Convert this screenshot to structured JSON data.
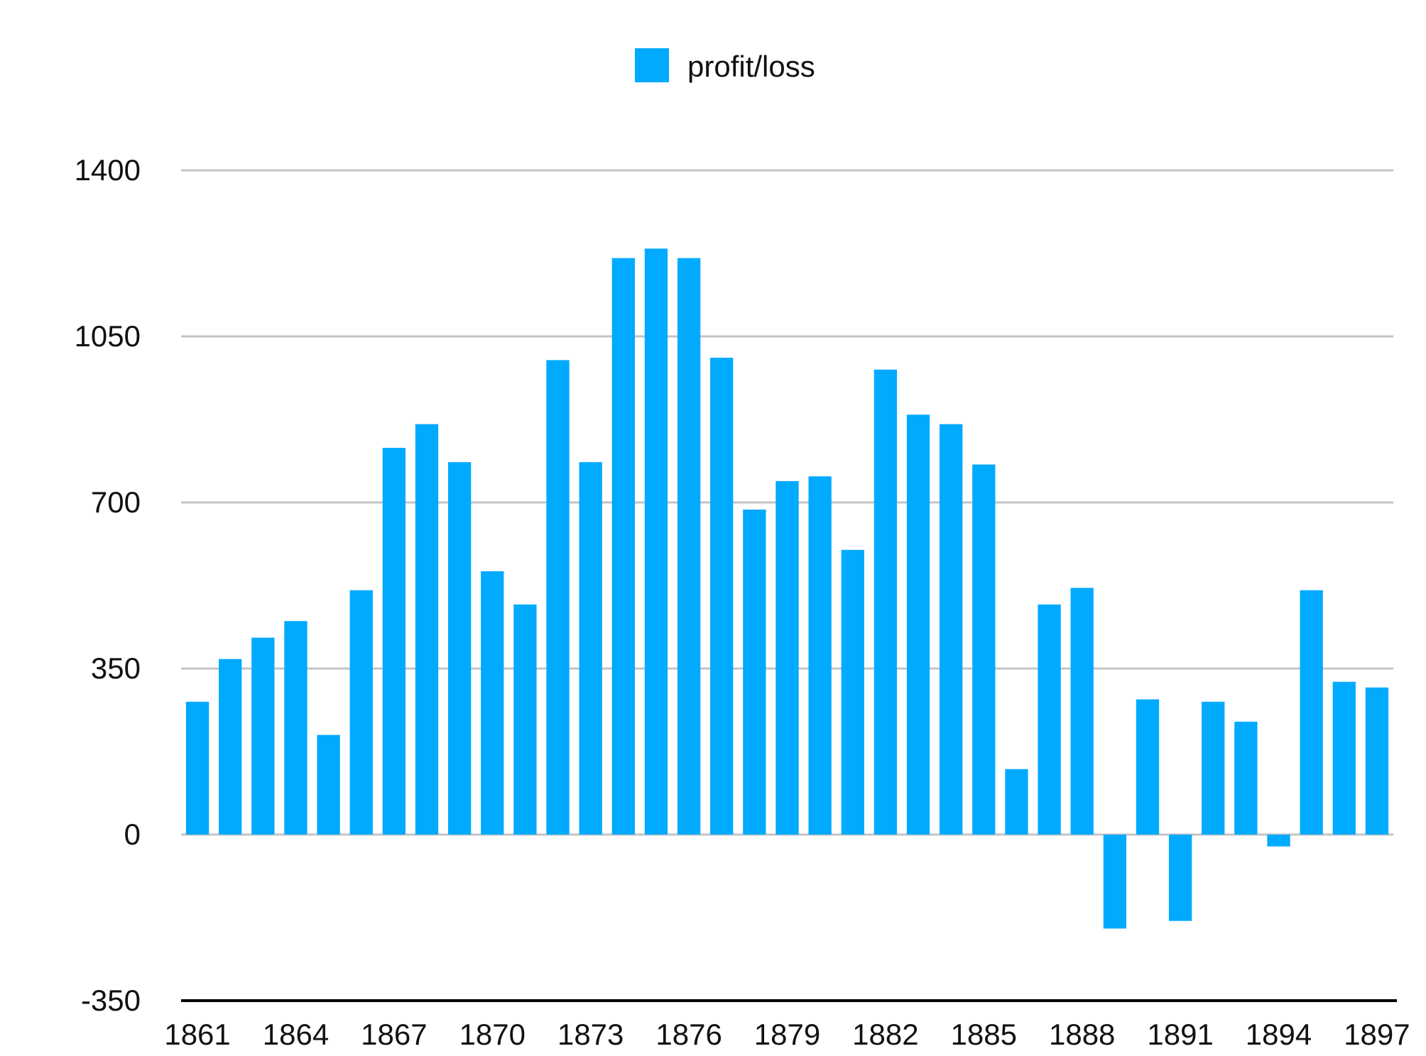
{
  "chart_data": {
    "type": "bar",
    "legend": {
      "position": "top-center",
      "entries": [
        {
          "name": "profit/loss",
          "color": "#00AAFF"
        }
      ]
    },
    "categories": [
      "1861",
      "1862",
      "1863",
      "1864",
      "1865",
      "1866",
      "1867",
      "1868",
      "1869",
      "1870",
      "1871",
      "1872",
      "1873",
      "1874",
      "1875",
      "1876",
      "1877",
      "1878",
      "1879",
      "1880",
      "1881",
      "1882",
      "1883",
      "1884",
      "1885",
      "1886",
      "1887",
      "1888",
      "1889",
      "1890",
      "1891",
      "1892",
      "1893",
      "1894",
      "1895",
      "1896",
      "1897"
    ],
    "x_tick_labels": [
      "1861",
      "1864",
      "1867",
      "1870",
      "1873",
      "1876",
      "1879",
      "1882",
      "1885",
      "1888",
      "1891",
      "1894",
      "1897"
    ],
    "series": [
      {
        "name": "profit/loss",
        "color": "#00AAFF",
        "values": [
          280,
          370,
          415,
          450,
          210,
          515,
          815,
          865,
          785,
          555,
          485,
          1000,
          785,
          1215,
          1235,
          1215,
          1005,
          685,
          745,
          755,
          600,
          980,
          885,
          865,
          780,
          138,
          485,
          520,
          -198,
          285,
          -182,
          280,
          238,
          -25,
          515,
          322,
          310
        ]
      }
    ],
    "y_ticks": [
      1400,
      1050,
      700,
      350,
      0,
      -350
    ],
    "ylim": [
      -350,
      1400
    ],
    "grid": true,
    "title": "",
    "xlabel": "",
    "ylabel": ""
  }
}
